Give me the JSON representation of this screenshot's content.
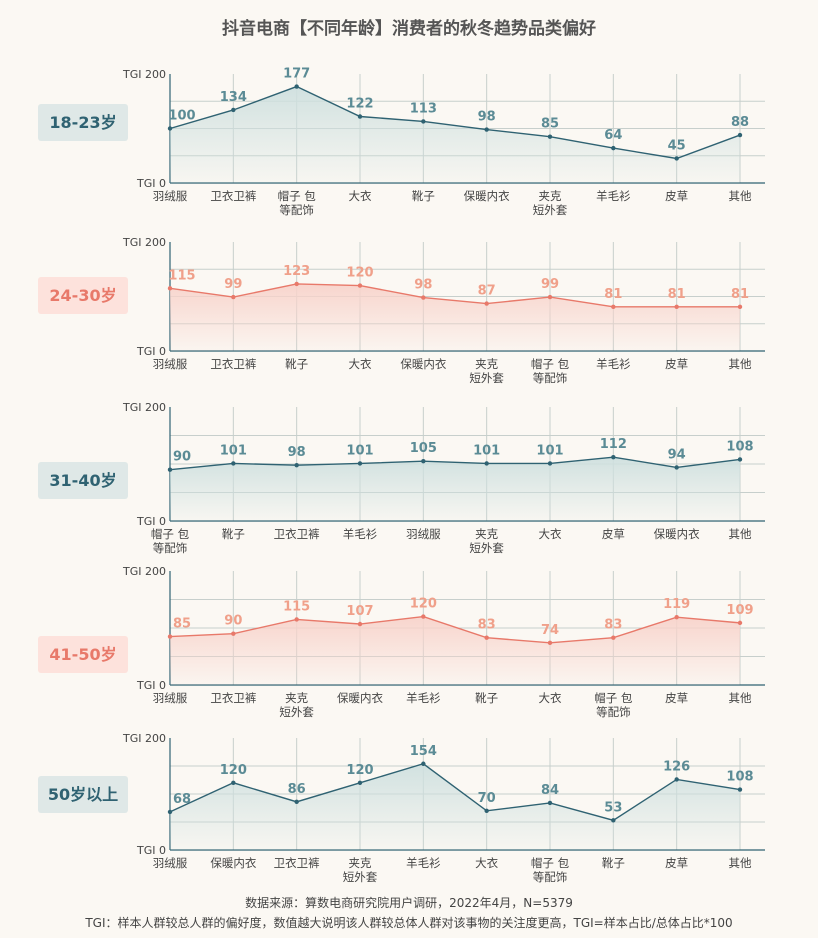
{
  "title": "抖音电商【不同年龄】消费者的秋冬趋势品类偏好",
  "colors": {
    "teal": "#2f6272",
    "teal_fill": "#cfe0df",
    "teal_badge_bg": "#dfe8e7",
    "teal_label": "#5b8b95",
    "salmon": "#e8796a",
    "salmon_fill": "#f8d3cb",
    "salmon_badge_bg": "#fde2dc",
    "salmon_label": "#f0a08a",
    "grid": "#c7cfcc",
    "axis_text": "#444444"
  },
  "chart_data": [
    {
      "type": "area",
      "group": "18-23岁",
      "theme": "teal",
      "ylabel_top": "TGI 200",
      "ylabel_bottom": "TGI 0",
      "ylim": [
        0,
        200
      ],
      "categories": [
        "羽绒服",
        "卫衣卫裤",
        "帽子 包|等配饰",
        "大衣",
        "靴子",
        "保暖内衣",
        "夹克|短外套",
        "羊毛衫",
        "皮草",
        "其他"
      ],
      "values": [
        100,
        134,
        177,
        122,
        113,
        98,
        85,
        64,
        45,
        88
      ]
    },
    {
      "type": "area",
      "group": "24-30岁",
      "theme": "salmon",
      "ylabel_top": "TGI 200",
      "ylabel_bottom": "TGI 0",
      "ylim": [
        0,
        200
      ],
      "categories": [
        "羽绒服",
        "卫衣卫裤",
        "靴子",
        "大衣",
        "保暖内衣",
        "夹克|短外套",
        "帽子 包|等配饰",
        "羊毛衫",
        "皮草",
        "其他"
      ],
      "values": [
        115,
        99,
        123,
        120,
        98,
        87,
        99,
        81,
        81,
        81
      ]
    },
    {
      "type": "area",
      "group": "31-40岁",
      "theme": "teal",
      "ylabel_top": "TGI 200",
      "ylabel_bottom": "TGI 0",
      "ylim": [
        0,
        200
      ],
      "categories": [
        "帽子 包|等配饰",
        "靴子",
        "卫衣卫裤",
        "羊毛衫",
        "羽绒服",
        "夹克|短外套",
        "大衣",
        "皮草",
        "保暖内衣",
        "其他"
      ],
      "values": [
        90,
        101,
        98,
        101,
        105,
        101,
        101,
        112,
        94,
        108
      ]
    },
    {
      "type": "area",
      "group": "41-50岁",
      "theme": "salmon",
      "ylabel_top": "TGI 200",
      "ylabel_bottom": "TGI 0",
      "ylim": [
        0,
        200
      ],
      "categories": [
        "羽绒服",
        "卫衣卫裤",
        "夹克|短外套",
        "保暖内衣",
        "羊毛衫",
        "靴子",
        "大衣",
        "帽子 包|等配饰",
        "皮草",
        "其他"
      ],
      "values": [
        85,
        90,
        115,
        107,
        120,
        83,
        74,
        83,
        119,
        109
      ]
    },
    {
      "type": "area",
      "group": "50岁以上",
      "theme": "teal",
      "ylabel_top": "TGI 200",
      "ylabel_bottom": "TGI 0",
      "ylim": [
        0,
        200
      ],
      "categories": [
        "羽绒服",
        "保暖内衣",
        "卫衣卫裤",
        "夹克|短外套",
        "羊毛衫",
        "大衣",
        "帽子 包|等配饰",
        "靴子",
        "皮草",
        "其他"
      ],
      "values": [
        68,
        120,
        86,
        120,
        154,
        70,
        84,
        53,
        126,
        108
      ]
    }
  ],
  "footer": {
    "source": "数据来源：算数电商研究院用户调研，2022年4月，N=5379",
    "note": "TGI：样本人群较总人群的偏好度，数值越大说明该人群较总体人群对该事物的关注度更高，TGI=样本占比/总体占比*100"
  }
}
